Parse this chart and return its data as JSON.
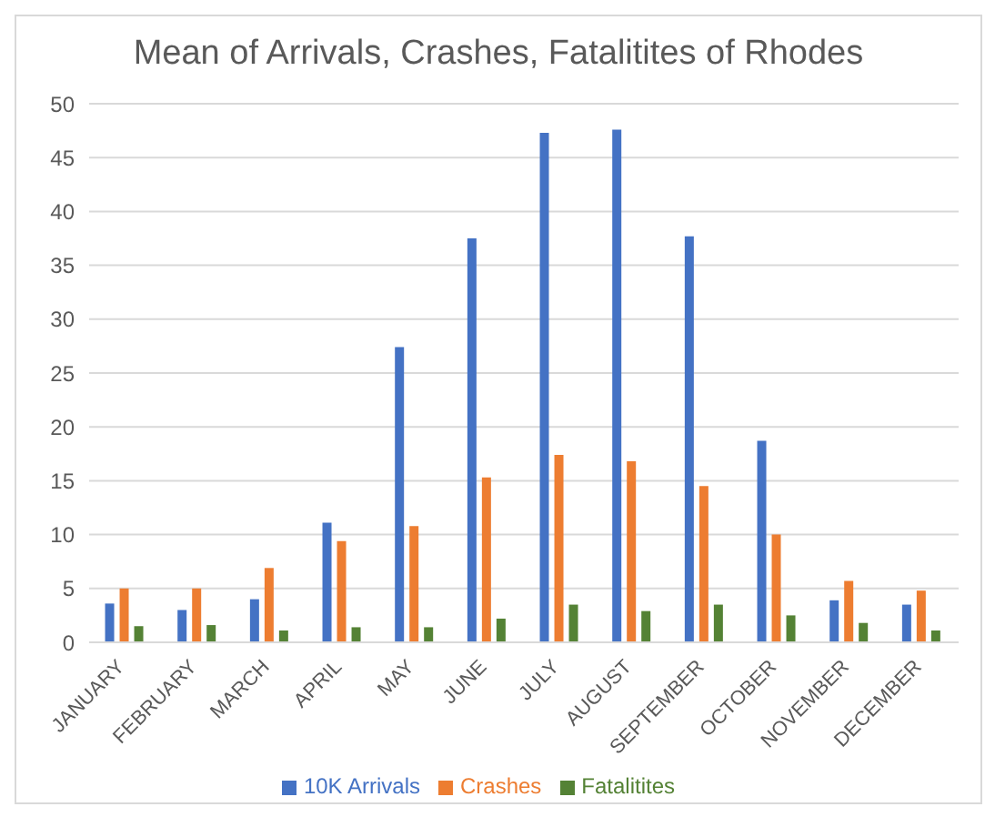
{
  "chart_data": {
    "type": "bar",
    "title": "Mean of Arrivals, Crashes, Fatalitites of Rhodes",
    "categories": [
      "JANUARY",
      "FEBRUARY",
      "MARCH",
      "APRIL",
      "MAY",
      "JUNE",
      "JULY",
      "AUGUST",
      "SEPTEMBER",
      "OCTOBER",
      "NOVEMBER",
      "DECEMBER"
    ],
    "series": [
      {
        "name": "10K Arrivals",
        "color": "#4472c4",
        "values": [
          3.6,
          3.0,
          4.0,
          11.1,
          27.4,
          37.5,
          47.3,
          47.6,
          37.7,
          18.7,
          3.9,
          3.5
        ]
      },
      {
        "name": "Crashes",
        "color": "#ed7d31",
        "values": [
          5.0,
          5.0,
          6.9,
          9.4,
          10.8,
          15.3,
          17.4,
          16.8,
          14.5,
          10.0,
          5.7,
          4.8
        ]
      },
      {
        "name": "Fatalitites",
        "color": "#548235",
        "values": [
          1.5,
          1.6,
          1.1,
          1.4,
          1.4,
          2.2,
          3.5,
          2.9,
          3.5,
          2.5,
          1.8,
          1.1
        ]
      }
    ],
    "ylim": [
      0,
      50
    ],
    "yticks": [
      0,
      5,
      10,
      15,
      20,
      25,
      30,
      35,
      40,
      45,
      50
    ],
    "grid": "y",
    "legend": "bottom"
  }
}
